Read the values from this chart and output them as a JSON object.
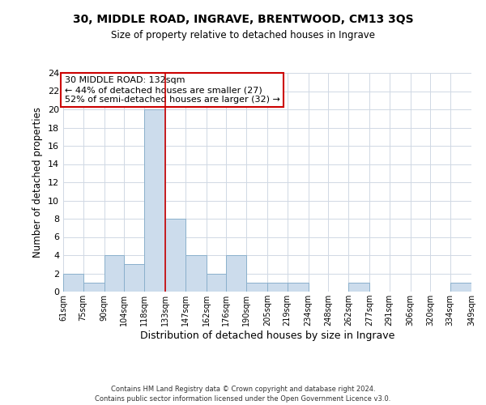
{
  "title": "30, MIDDLE ROAD, INGRAVE, BRENTWOOD, CM13 3QS",
  "subtitle": "Size of property relative to detached houses in Ingrave",
  "xlabel": "Distribution of detached houses by size in Ingrave",
  "ylabel": "Number of detached properties",
  "bin_edges": [
    61,
    75,
    90,
    104,
    118,
    133,
    147,
    162,
    176,
    190,
    205,
    219,
    234,
    248,
    262,
    277,
    291,
    306,
    320,
    334,
    349
  ],
  "bar_heights": [
    2,
    1,
    4,
    3,
    20,
    8,
    4,
    2,
    4,
    1,
    1,
    1,
    0,
    0,
    1,
    0,
    0,
    0,
    0,
    1
  ],
  "bar_color": "#ccdcec",
  "bar_edgecolor": "#8ab0cc",
  "ref_line_x": 133,
  "ref_line_color": "#cc0000",
  "annotation_title": "30 MIDDLE ROAD: 132sqm",
  "annotation_line1": "← 44% of detached houses are smaller (27)",
  "annotation_line2": "52% of semi-detached houses are larger (32) →",
  "annotation_box_edgecolor": "#cc0000",
  "ylim": [
    0,
    24
  ],
  "yticks": [
    0,
    2,
    4,
    6,
    8,
    10,
    12,
    14,
    16,
    18,
    20,
    22,
    24
  ],
  "footnote1": "Contains HM Land Registry data © Crown copyright and database right 2024.",
  "footnote2": "Contains public sector information licensed under the Open Government Licence v3.0.",
  "bg_color": "#ffffff",
  "grid_color": "#d0d8e4"
}
